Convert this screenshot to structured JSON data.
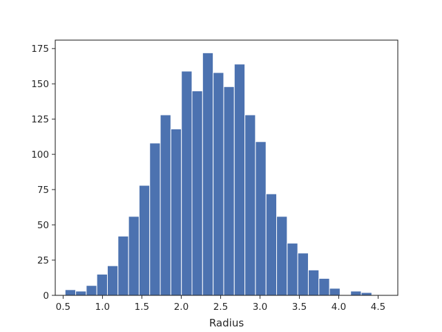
{
  "chart_data": {
    "type": "bar",
    "title": "",
    "xlabel": "Radius",
    "ylabel": "",
    "xlim": [
      0.4,
      4.75
    ],
    "ylim": [
      0,
      181
    ],
    "x_ticks": [
      0.5,
      1.0,
      1.5,
      2.0,
      2.5,
      3.0,
      3.5,
      4.0,
      4.5
    ],
    "x_tick_labels": [
      "0.5",
      "1.0",
      "1.5",
      "2.0",
      "2.5",
      "3.0",
      "3.5",
      "4.0",
      "4.5"
    ],
    "y_ticks": [
      0,
      25,
      50,
      75,
      100,
      125,
      150,
      175
    ],
    "y_tick_labels": [
      "0",
      "25",
      "50",
      "75",
      "100",
      "125",
      "150",
      "175"
    ],
    "bar_color": "#4c72b0",
    "bin_start": 0.525,
    "bin_width": 0.1343,
    "values": [
      4,
      3,
      7,
      15,
      21,
      42,
      56,
      78,
      108,
      128,
      118,
      159,
      145,
      172,
      158,
      148,
      164,
      128,
      109,
      72,
      56,
      37,
      30,
      18,
      12,
      5,
      0,
      3,
      2,
      0
    ],
    "grid": false
  }
}
